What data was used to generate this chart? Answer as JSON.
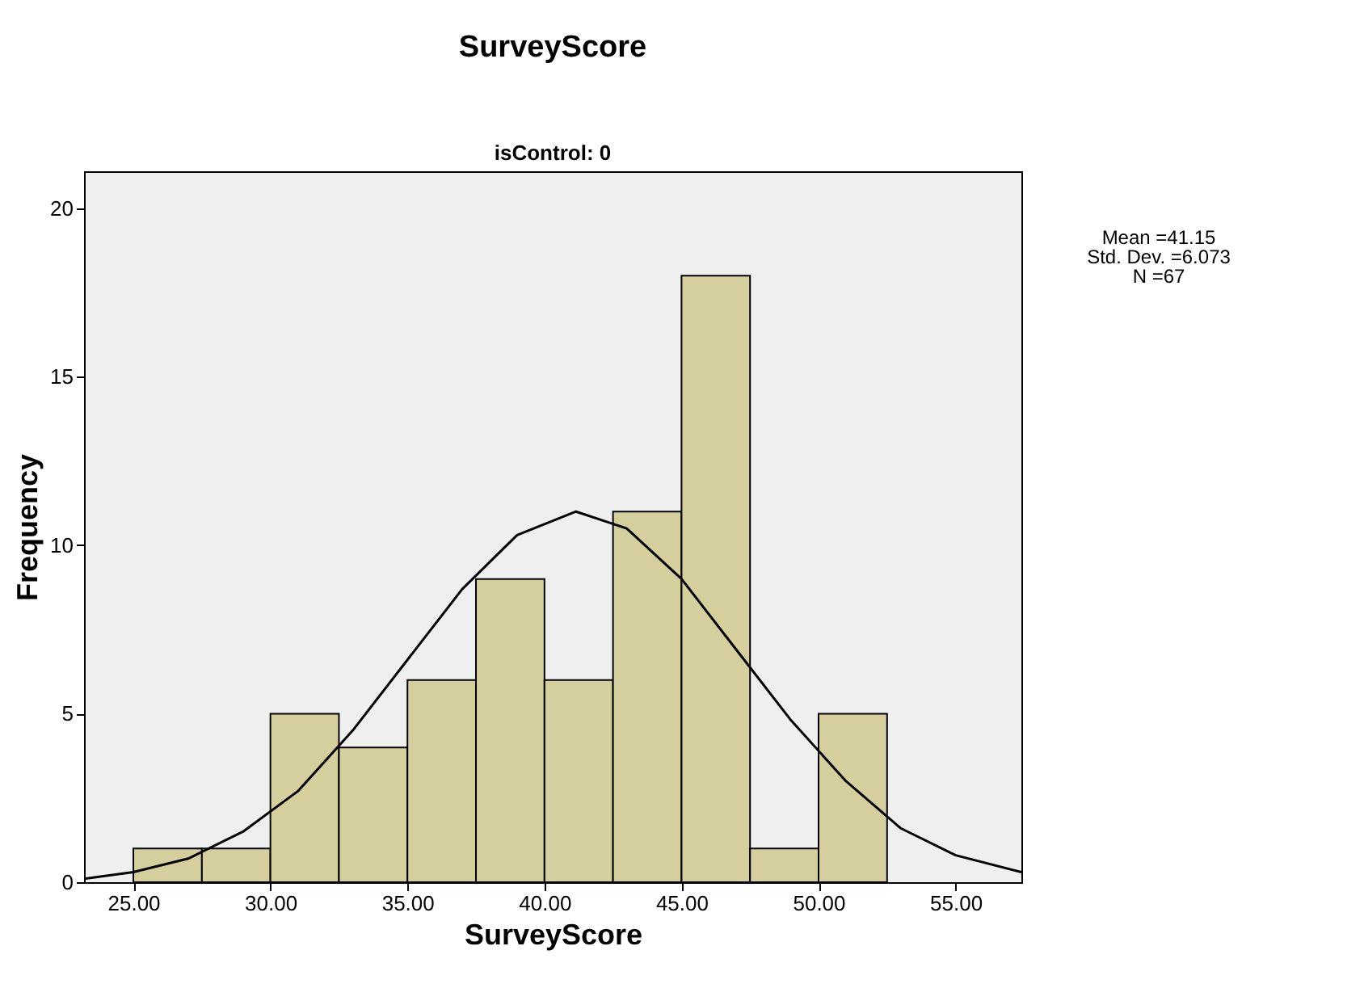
{
  "chart_data": {
    "type": "histogram",
    "title": "SurveyScore",
    "subtitle": "isControl: 0",
    "xlabel": "SurveyScore",
    "ylabel": "Frequency",
    "bins": [
      25,
      27.5,
      30,
      32.5,
      35,
      37.5,
      40,
      42.5,
      45,
      47.5,
      50,
      52.5
    ],
    "series": [
      {
        "color": "#d4cf9c",
        "values": [
          1,
          1,
          5,
          4,
          6,
          9,
          6,
          11,
          18,
          1,
          5
        ]
      },
      {
        "type": "line",
        "color": "#000000",
        "x": [
          23.2,
          25,
          27,
          29,
          31,
          33,
          35,
          37,
          39,
          41.15,
          43,
          45,
          47,
          49,
          51,
          53,
          55,
          57.4
        ],
        "values": [
          0.1,
          0.3,
          0.7,
          1.5,
          2.7,
          4.5,
          6.6,
          8.7,
          10.3,
          11.0,
          10.5,
          9.0,
          6.9,
          4.8,
          3.0,
          1.6,
          0.8,
          0.3
        ]
      }
    ],
    "xlim": [
      23.2,
      57.4
    ],
    "xticks": [
      {
        "value": 25,
        "label": "25.00"
      },
      {
        "value": 30,
        "label": "30.00"
      },
      {
        "value": 35,
        "label": "35.00"
      },
      {
        "value": 40,
        "label": "40.00"
      },
      {
        "value": 45,
        "label": "45.00"
      },
      {
        "value": 50,
        "label": "50.00"
      },
      {
        "value": 55,
        "label": "55.00"
      }
    ],
    "ylim": [
      0,
      21.1
    ],
    "yticks": [
      0,
      5,
      10,
      15,
      20
    ],
    "annotations": [
      "Mean =41.15",
      "Std. Dev. =6.073",
      "N =67"
    ]
  }
}
